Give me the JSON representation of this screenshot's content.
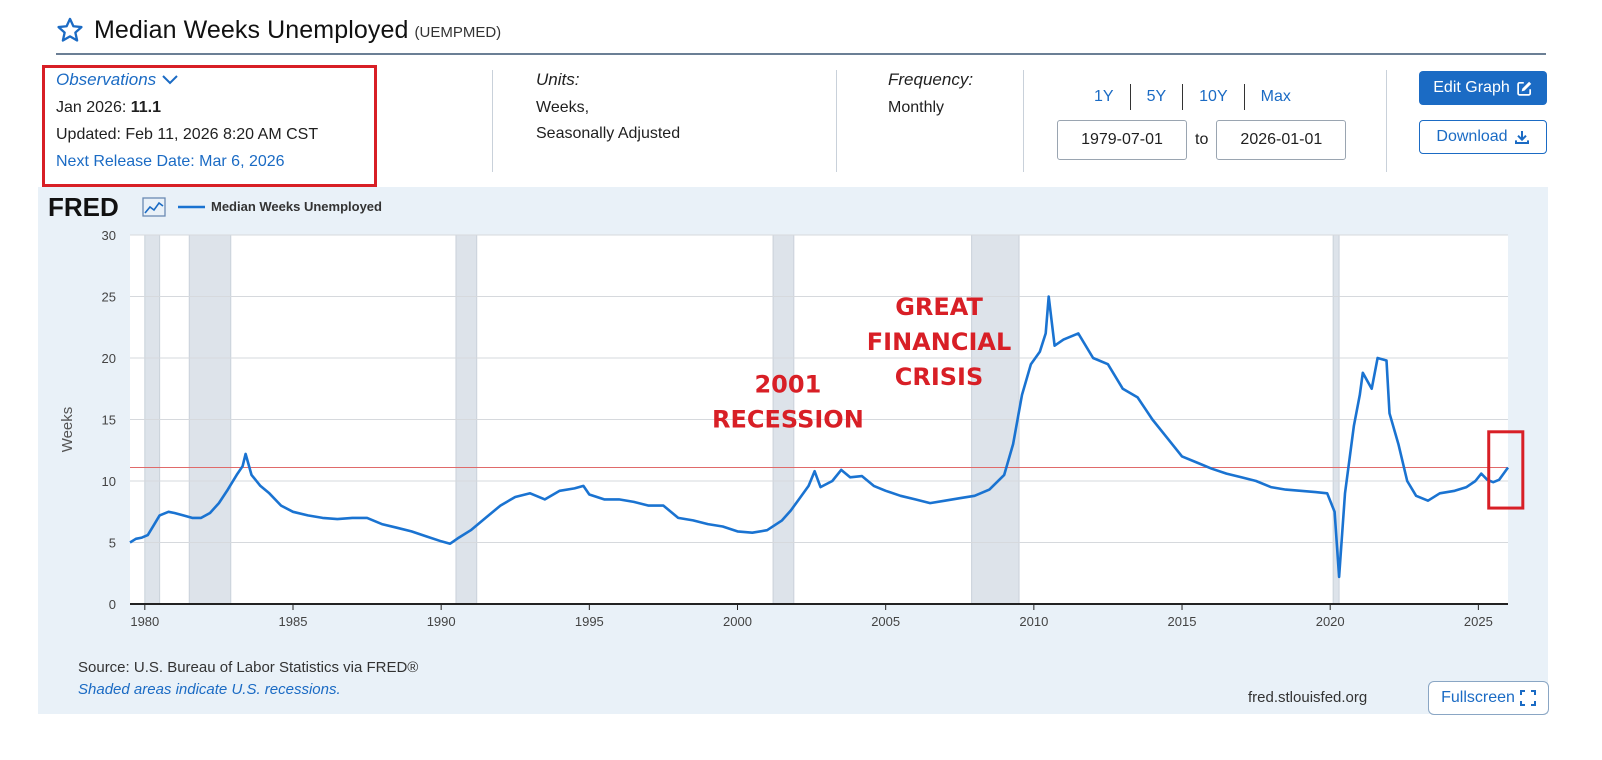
{
  "header": {
    "title": "Median Weeks Unemployed",
    "series_code": "(UEMPMED)"
  },
  "observations": {
    "label": "Observations",
    "latest_prefix": "Jan 2026:",
    "latest_value": "11.1",
    "updated": "Updated: Feb 11, 2026 8:20 AM CST",
    "next_release": "Next Release Date: Mar 6, 2026"
  },
  "units": {
    "label": "Units:",
    "line1": "Weeks,",
    "line2": "Seasonally Adjusted"
  },
  "frequency": {
    "label": "Frequency:",
    "value": "Monthly"
  },
  "range_buttons": [
    "1Y",
    "5Y",
    "10Y",
    "Max"
  ],
  "date_range": {
    "start": "1979-07-01",
    "to_label": "to",
    "end": "2026-01-01"
  },
  "buttons": {
    "edit": "Edit Graph",
    "download": "Download",
    "fullscreen": "Fullscreen"
  },
  "footer": {
    "source": "Source: U.S. Bureau of Labor Statistics via FRED®",
    "shaded_note": "Shaded areas indicate U.S. recessions.",
    "site": "fred.stlouisfed.org"
  },
  "colors": {
    "accent": "#1b6bc4",
    "series": "#1a73d1",
    "annotation": "#d81f26",
    "panel_bg": "#e9f1f8",
    "recession": "#dde3ea",
    "reference_line": "#e06a6a"
  },
  "chart_data": {
    "type": "line",
    "brand": "FRED",
    "title": "Median Weeks Unemployed",
    "legend": [
      "Median Weeks Unemployed"
    ],
    "xlabel": "",
    "ylabel": "Weeks",
    "xlim": [
      1979.5,
      2026.0
    ],
    "ylim": [
      0,
      30
    ],
    "grid": true,
    "x_ticks": [
      1980,
      1985,
      1990,
      1995,
      2000,
      2005,
      2010,
      2015,
      2020,
      2025
    ],
    "y_ticks": [
      0,
      5,
      10,
      15,
      20,
      25,
      30
    ],
    "recessions": [
      [
        1980.0,
        1980.5
      ],
      [
        1981.5,
        1982.9
      ],
      [
        1990.5,
        1991.2
      ],
      [
        2001.2,
        2001.9
      ],
      [
        2007.9,
        2009.5
      ],
      [
        2020.1,
        2020.3
      ]
    ],
    "reference_line": 11.1,
    "annotations": [
      {
        "text": [
          "GREAT",
          "FINANCIAL",
          "CRISIS"
        ],
        "x": 2006.8,
        "y": 23.5
      },
      {
        "text": [
          "2001",
          "RECESSION"
        ],
        "x": 2001.7,
        "y": 17.2
      }
    ],
    "highlight_box": {
      "x": [
        2025.35,
        2026.5
      ],
      "y": [
        7.8,
        14.0
      ]
    },
    "series": [
      {
        "name": "Median Weeks Unemployed",
        "points": [
          [
            1979.5,
            5.0
          ],
          [
            1979.7,
            5.3
          ],
          [
            1979.9,
            5.4
          ],
          [
            1980.1,
            5.6
          ],
          [
            1980.3,
            6.4
          ],
          [
            1980.5,
            7.2
          ],
          [
            1980.8,
            7.5
          ],
          [
            1981.0,
            7.4
          ],
          [
            1981.3,
            7.2
          ],
          [
            1981.6,
            7.0
          ],
          [
            1981.9,
            7.0
          ],
          [
            1982.2,
            7.4
          ],
          [
            1982.5,
            8.2
          ],
          [
            1982.8,
            9.3
          ],
          [
            1983.1,
            10.5
          ],
          [
            1983.3,
            11.2
          ],
          [
            1983.4,
            12.2
          ],
          [
            1983.6,
            10.5
          ],
          [
            1983.9,
            9.6
          ],
          [
            1984.2,
            9.0
          ],
          [
            1984.6,
            8.0
          ],
          [
            1985.0,
            7.5
          ],
          [
            1985.5,
            7.2
          ],
          [
            1986.0,
            7.0
          ],
          [
            1986.5,
            6.9
          ],
          [
            1987.0,
            7.0
          ],
          [
            1987.5,
            7.0
          ],
          [
            1988.0,
            6.5
          ],
          [
            1988.5,
            6.2
          ],
          [
            1989.0,
            5.9
          ],
          [
            1989.5,
            5.5
          ],
          [
            1990.0,
            5.1
          ],
          [
            1990.3,
            4.9
          ],
          [
            1990.6,
            5.4
          ],
          [
            1991.0,
            6.0
          ],
          [
            1991.5,
            7.0
          ],
          [
            1992.0,
            8.0
          ],
          [
            1992.5,
            8.7
          ],
          [
            1993.0,
            9.0
          ],
          [
            1993.5,
            8.5
          ],
          [
            1994.0,
            9.2
          ],
          [
            1994.5,
            9.4
          ],
          [
            1994.8,
            9.6
          ],
          [
            1995.0,
            8.9
          ],
          [
            1995.5,
            8.5
          ],
          [
            1996.0,
            8.5
          ],
          [
            1996.5,
            8.3
          ],
          [
            1997.0,
            8.0
          ],
          [
            1997.5,
            8.0
          ],
          [
            1998.0,
            7.0
          ],
          [
            1998.5,
            6.8
          ],
          [
            1999.0,
            6.5
          ],
          [
            1999.5,
            6.3
          ],
          [
            2000.0,
            5.9
          ],
          [
            2000.5,
            5.8
          ],
          [
            2001.0,
            6.0
          ],
          [
            2001.5,
            6.8
          ],
          [
            2001.8,
            7.6
          ],
          [
            2002.1,
            8.6
          ],
          [
            2002.4,
            9.6
          ],
          [
            2002.6,
            10.8
          ],
          [
            2002.8,
            9.5
          ],
          [
            2003.2,
            10.0
          ],
          [
            2003.5,
            10.9
          ],
          [
            2003.8,
            10.3
          ],
          [
            2004.2,
            10.4
          ],
          [
            2004.6,
            9.6
          ],
          [
            2005.0,
            9.2
          ],
          [
            2005.5,
            8.8
          ],
          [
            2006.0,
            8.5
          ],
          [
            2006.5,
            8.2
          ],
          [
            2007.0,
            8.4
          ],
          [
            2007.5,
            8.6
          ],
          [
            2008.0,
            8.8
          ],
          [
            2008.5,
            9.3
          ],
          [
            2009.0,
            10.5
          ],
          [
            2009.3,
            13.0
          ],
          [
            2009.6,
            17.0
          ],
          [
            2009.9,
            19.5
          ],
          [
            2010.2,
            20.5
          ],
          [
            2010.4,
            22.0
          ],
          [
            2010.5,
            25.0
          ],
          [
            2010.7,
            21.0
          ],
          [
            2011.0,
            21.5
          ],
          [
            2011.5,
            22.0
          ],
          [
            2012.0,
            20.0
          ],
          [
            2012.5,
            19.5
          ],
          [
            2013.0,
            17.5
          ],
          [
            2013.5,
            16.8
          ],
          [
            2014.0,
            15.0
          ],
          [
            2014.5,
            13.5
          ],
          [
            2015.0,
            12.0
          ],
          [
            2015.5,
            11.5
          ],
          [
            2016.0,
            11.0
          ],
          [
            2016.5,
            10.6
          ],
          [
            2017.0,
            10.3
          ],
          [
            2017.5,
            10.0
          ],
          [
            2018.0,
            9.5
          ],
          [
            2018.5,
            9.3
          ],
          [
            2019.0,
            9.2
          ],
          [
            2019.5,
            9.1
          ],
          [
            2019.9,
            9.0
          ],
          [
            2020.15,
            7.5
          ],
          [
            2020.3,
            2.2
          ],
          [
            2020.5,
            9.0
          ],
          [
            2020.8,
            14.5
          ],
          [
            2021.0,
            17.0
          ],
          [
            2021.1,
            18.8
          ],
          [
            2021.4,
            17.5
          ],
          [
            2021.6,
            20.0
          ],
          [
            2021.9,
            19.8
          ],
          [
            2022.0,
            15.5
          ],
          [
            2022.3,
            13.0
          ],
          [
            2022.6,
            10.0
          ],
          [
            2022.9,
            8.8
          ],
          [
            2023.3,
            8.4
          ],
          [
            2023.7,
            9.0
          ],
          [
            2024.2,
            9.2
          ],
          [
            2024.6,
            9.5
          ],
          [
            2024.9,
            10.0
          ],
          [
            2025.1,
            10.6
          ],
          [
            2025.3,
            10.1
          ],
          [
            2025.5,
            9.9
          ],
          [
            2025.7,
            10.1
          ],
          [
            2025.85,
            10.6
          ],
          [
            2026.0,
            11.1
          ]
        ]
      }
    ]
  }
}
